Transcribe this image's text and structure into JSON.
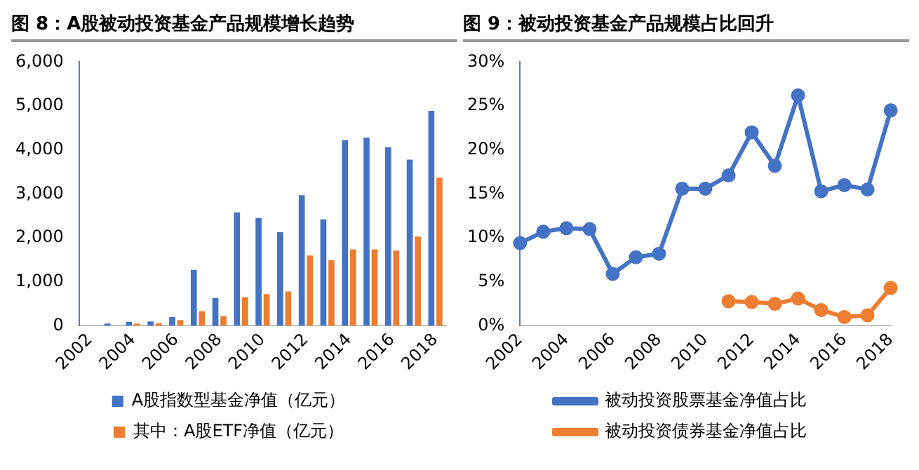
{
  "chart_data": [
    {
      "type": "bar",
      "title": "图 8：A股被动投资基金产品规模增长趋势",
      "categories": [
        "2002",
        null,
        "2004",
        null,
        "2006",
        null,
        "2008",
        null,
        "2010",
        null,
        "2012",
        null,
        "2014",
        null,
        "2016",
        null,
        "2018"
      ],
      "series": [
        {
          "name": "A股指数型基金净值（亿元）",
          "color": "#4472c4",
          "values": [
            null,
            50,
            90,
            100,
            200,
            1270,
            630,
            2580,
            2450,
            2130,
            2970,
            2420,
            4220,
            4280,
            4060,
            3780,
            4890
          ]
        },
        {
          "name": "其中：A股ETF净值（亿元）",
          "color": "#ed7d31",
          "values": [
            null,
            null,
            50,
            60,
            130,
            330,
            220,
            650,
            720,
            780,
            1600,
            1490,
            1740,
            1740,
            1710,
            2030,
            3370
          ]
        }
      ],
      "ylim": [
        0,
        6000
      ],
      "yticks": [
        0,
        {
          "value": 1000,
          "label": "1,000"
        },
        {
          "value": 2000,
          "label": "2,000"
        },
        {
          "value": 3000,
          "label": "3,000"
        },
        {
          "value": 4000,
          "label": "4,000"
        },
        {
          "value": 5000,
          "label": "5,000"
        },
        {
          "value": 6000,
          "label": "6,000"
        }
      ],
      "legend": "bottom"
    },
    {
      "type": "line",
      "title": "图 9：被动投资基金产品规模占比回升",
      "categories": [
        "2002",
        null,
        "2004",
        null,
        "2006",
        null,
        "2008",
        null,
        "2010",
        null,
        "2012",
        null,
        "2014",
        null,
        "2016",
        null,
        "2018"
      ],
      "series": [
        {
          "name": "被动投资股票基金净值占比",
          "color": "#4472c4",
          "values": [
            9.4,
            10.7,
            11.1,
            11.0,
            5.9,
            7.8,
            8.2,
            15.6,
            15.6,
            17.1,
            22.0,
            18.2,
            26.2,
            15.3,
            16.0,
            15.5,
            24.5
          ]
        },
        {
          "name": "被动投资债券基金净值占比",
          "color": "#ed7d31",
          "values": [
            null,
            null,
            null,
            null,
            null,
            null,
            null,
            null,
            null,
            2.8,
            2.7,
            2.5,
            3.1,
            1.8,
            1.0,
            1.2,
            4.3
          ]
        }
      ],
      "ylim": [
        0,
        30
      ],
      "yticks": [
        {
          "value": 0,
          "label": "0%"
        },
        {
          "value": 5,
          "label": "5%"
        },
        {
          "value": 10,
          "label": "10%"
        },
        {
          "value": 15,
          "label": "15%"
        },
        {
          "value": 20,
          "label": "20%"
        },
        {
          "value": 25,
          "label": "25%"
        },
        {
          "value": 30,
          "label": "30%"
        }
      ],
      "legend": "bottom",
      "marker": "circle",
      "line_style": "solid"
    }
  ]
}
